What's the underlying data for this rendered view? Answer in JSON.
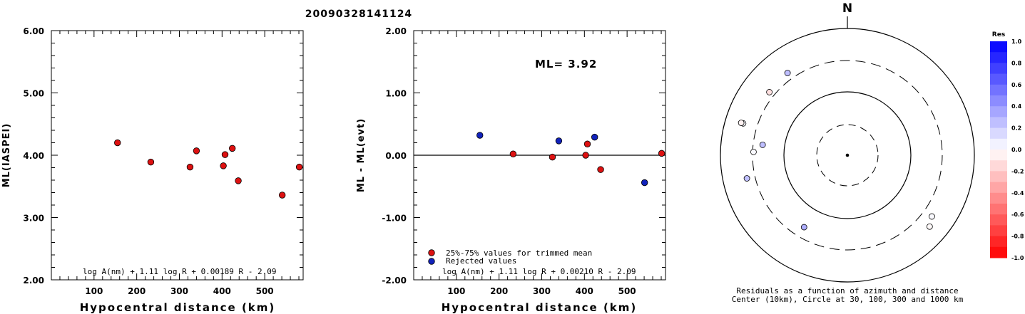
{
  "title": "20090328141124",
  "chart_data": [
    {
      "type": "scatter",
      "xlabel": "Hypocentral distance (km)",
      "ylabel": "ML(IASPEI)",
      "xlim": [
        0,
        590
      ],
      "ylim": [
        2.0,
        6.0
      ],
      "xticks": [
        100,
        200,
        300,
        400,
        500
      ],
      "xtick_labels": [
        "100",
        "200",
        "300",
        "400",
        "500"
      ],
      "yticks": [
        2.0,
        3.0,
        4.0,
        5.0,
        6.0
      ],
      "ytick_labels": [
        "2.00",
        "3.00",
        "4.00",
        "5.00",
        "6.00"
      ],
      "formula": "log A(nm) + 1.11 log R + 0.00189 R - 2.09",
      "points": [
        {
          "x": 155,
          "y": 4.2
        },
        {
          "x": 233,
          "y": 3.89
        },
        {
          "x": 325,
          "y": 3.81
        },
        {
          "x": 340,
          "y": 4.07
        },
        {
          "x": 403,
          "y": 3.83
        },
        {
          "x": 407,
          "y": 4.01
        },
        {
          "x": 424,
          "y": 4.11
        },
        {
          "x": 438,
          "y": 3.59
        },
        {
          "x": 541,
          "y": 3.36
        },
        {
          "x": 581,
          "y": 3.81
        }
      ]
    },
    {
      "type": "scatter",
      "xlabel": "Hypocentral distance (km)",
      "ylabel": "ML - ML(evt)",
      "xlim": [
        0,
        590
      ],
      "ylim": [
        -2.0,
        2.0
      ],
      "xticks": [
        100,
        200,
        300,
        400,
        500
      ],
      "xtick_labels": [
        "100",
        "200",
        "300",
        "400",
        "500"
      ],
      "yticks": [
        -2.0,
        -1.0,
        0.0,
        1.0,
        2.0
      ],
      "ytick_labels": [
        "-2.00",
        "-1.00",
        "0.00",
        "1.00",
        "2.00"
      ],
      "annotation": "ML= 3.92",
      "formula": "log A(nm) + 1.11 log R + 0.00210 R - 2.09",
      "legend": [
        {
          "label": "25%-75% values for trimmed mean",
          "color": "#dd1111"
        },
        {
          "label": "Rejected values",
          "color": "#1122bb"
        }
      ],
      "series": [
        {
          "name": "25%-75% values for trimmed mean",
          "color": "#dd1111",
          "points": [
            {
              "x": 233,
              "y": 0.02
            },
            {
              "x": 325,
              "y": -0.03
            },
            {
              "x": 403,
              "y": 0.0
            },
            {
              "x": 407,
              "y": 0.18
            },
            {
              "x": 438,
              "y": -0.23
            },
            {
              "x": 581,
              "y": 0.03
            }
          ]
        },
        {
          "name": "Rejected values",
          "color": "#1122bb",
          "points": [
            {
              "x": 155,
              "y": 0.32
            },
            {
              "x": 340,
              "y": 0.23
            },
            {
              "x": 424,
              "y": 0.29
            },
            {
              "x": 541,
              "y": -0.44
            }
          ]
        }
      ]
    },
    {
      "type": "scatter",
      "subtype": "polar",
      "north_label": "N",
      "caption_line1": "Residuals as a function of azimuth and distance",
      "caption_line2": "Center (10km), Circle at 30, 100, 300 and 1000 km",
      "colorbar": {
        "title": "Res",
        "min": -1.0,
        "max": 1.0,
        "tick_values": [
          1.0,
          0.8,
          0.6,
          0.4,
          0.2,
          0.0,
          -0.2,
          -0.4,
          -0.6,
          -0.8,
          -1.0
        ],
        "tick_labels": [
          "1.0",
          "0.8",
          "0.6",
          "0.4",
          "0.2",
          "0.0",
          "-0.2",
          "-0.4",
          "-0.6",
          "-0.8",
          "-1.0"
        ]
      },
      "points": [
        {
          "azimuth": 324,
          "distance": 400,
          "res": 0.25
        },
        {
          "azimuth": 309,
          "distance": 380,
          "res": -0.12
        },
        {
          "azimuth": 287,
          "distance": 520,
          "res": 0.02
        },
        {
          "azimuth": 287,
          "distance": 560,
          "res": -0.05
        },
        {
          "azimuth": 272,
          "distance": 300,
          "res": 0.02
        },
        {
          "azimuth": 277,
          "distance": 220,
          "res": 0.25
        },
        {
          "azimuth": 257,
          "distance": 420,
          "res": 0.25
        },
        {
          "azimuth": 211,
          "distance": 210,
          "res": 0.32
        },
        {
          "azimuth": 126,
          "distance": 440,
          "res": 0.02
        },
        {
          "azimuth": 131,
          "distance": 520,
          "res": -0.02
        }
      ]
    }
  ]
}
